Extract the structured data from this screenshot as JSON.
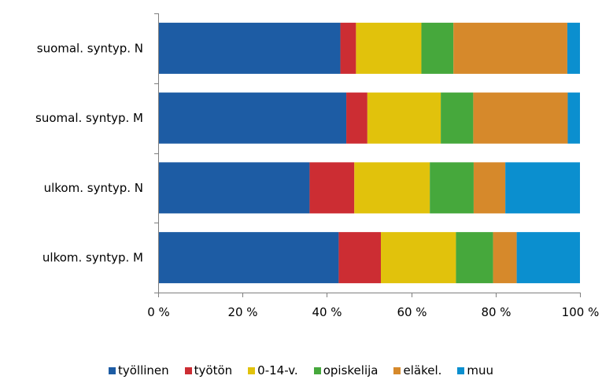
{
  "chart_data": {
    "type": "bar",
    "orientation": "horizontal",
    "stacked": "percent",
    "categories": [
      "suomal. syntyp. N",
      "suomal. syntyp. M",
      "ulkom. syntyp. N",
      "ulkom. syntyp. M"
    ],
    "series": [
      {
        "name": "työllinen",
        "color": "#1d5ca4",
        "values": [
          43.2,
          44.6,
          35.9,
          42.8
        ]
      },
      {
        "name": "työtön",
        "color": "#cc2d33",
        "values": [
          3.7,
          5.0,
          10.6,
          10.0
        ]
      },
      {
        "name": "0-14-v.",
        "color": "#e1c20c",
        "values": [
          15.5,
          17.4,
          17.9,
          17.8
        ]
      },
      {
        "name": "opiskelija",
        "color": "#46a83c",
        "values": [
          7.6,
          7.7,
          10.4,
          8.8
        ]
      },
      {
        "name": "eläkel.",
        "color": "#d6892b",
        "values": [
          27.0,
          22.4,
          7.5,
          5.6
        ]
      },
      {
        "name": "muu",
        "color": "#0b8fcf",
        "values": [
          3.0,
          2.9,
          17.7,
          15.0
        ]
      }
    ],
    "x_ticks": [
      "0 %",
      "20 %",
      "40 %",
      "60 %",
      "80 %",
      "100 %"
    ],
    "xlim": [
      0,
      100
    ],
    "grid": false,
    "legend_position": "bottom"
  }
}
